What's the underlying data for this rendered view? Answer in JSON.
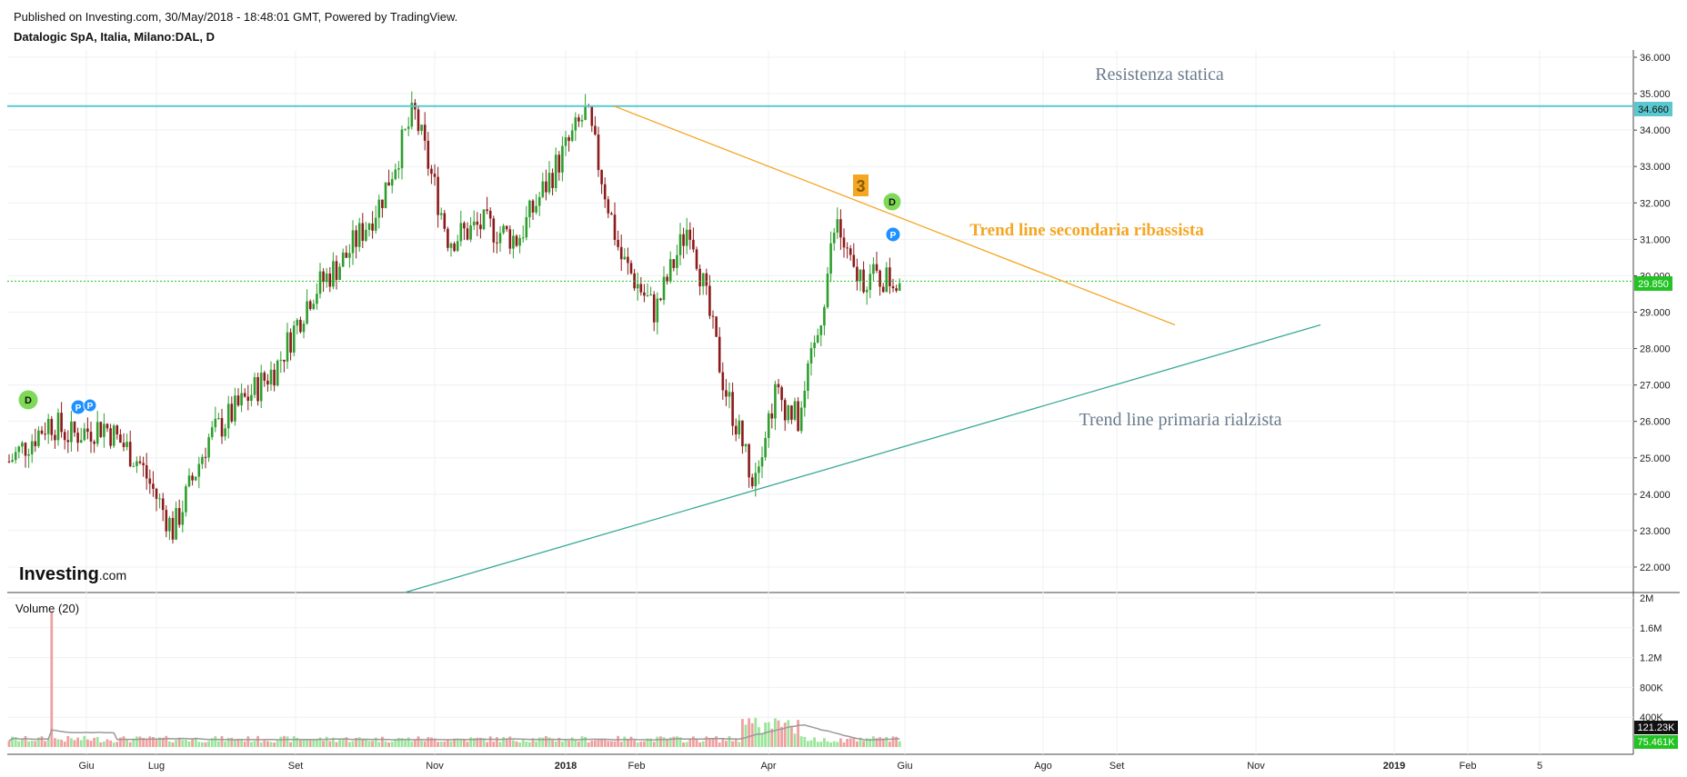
{
  "header": {
    "published": "Published on Investing.com, 30/May/2018 - 18:48:01 GMT, Powered by TradingView.",
    "symbol": "Datalogic SpA, Italia, Milano:DAL, D"
  },
  "logo": {
    "text": "Investing",
    "suffix": ".com"
  },
  "colors": {
    "up": "#2e9e2e",
    "down": "#8b1a1a",
    "resistance": "#5bc8d0",
    "secondary_trend": "#f5a623",
    "primary_trend": "#3aa89a",
    "last_price": "#22c322",
    "vol_up": "#9be59b",
    "vol_down": "#f0a0a0"
  },
  "annotations": {
    "resistance": "Resistenza statica",
    "secondary": "Trend line secondaria ribassista",
    "primary": "Trend line primaria rialzista",
    "wave_label": "3"
  },
  "markers": [
    {
      "label": "D",
      "kind": "dividend"
    },
    {
      "label": "P",
      "kind": "split"
    },
    {
      "label": "P",
      "kind": "split"
    },
    {
      "label": "D",
      "kind": "dividend"
    },
    {
      "label": "P",
      "kind": "split"
    }
  ],
  "price_labels": {
    "resistance": "34.660",
    "last": "29.850"
  },
  "volume_labels": {
    "title": "Volume (20)",
    "ma": "121.23K",
    "last": "75.461K"
  },
  "chart_data": {
    "type": "candlestick",
    "x_ticks": [
      "Giu",
      "Lug",
      "Set",
      "Nov",
      "2018",
      "Feb",
      "Apr",
      "Giu",
      "Ago",
      "Set",
      "Nov",
      "2019",
      "Feb",
      "5"
    ],
    "y_ticks": [
      "36.000",
      "35.000",
      "34.000",
      "33.000",
      "32.000",
      "31.000",
      "30.000",
      "29.000",
      "28.000",
      "27.000",
      "26.000",
      "25.000",
      "24.000",
      "23.000",
      "22.000"
    ],
    "y_range": [
      21.3,
      36.2
    ],
    "volume_ticks": [
      "2M",
      "1.6M",
      "1.2M",
      "800K",
      "400K"
    ],
    "volume_range": [
      0,
      2000000
    ],
    "resistance_level": 34.66,
    "last_price": 29.85,
    "secondary_trendline": {
      "from": [
        "Gen 2018",
        34.66
      ],
      "to": [
        "Ago 2018",
        28.65
      ]
    },
    "primary_trendline": {
      "from": [
        "Ago 2017",
        21.3
      ],
      "to": [
        "Dic 2018",
        28.65
      ]
    },
    "price_path": [
      {
        "date": "Mag 2017",
        "close": 24.9
      },
      {
        "date": "Mag 2017",
        "close": 26.0
      },
      {
        "date": "Giu 2017",
        "close": 25.6
      },
      {
        "date": "Giu 2017",
        "close": 25.9
      },
      {
        "date": "Lug 2017",
        "close": 24.9
      },
      {
        "date": "Lug 2017",
        "close": 23.0
      },
      {
        "date": "Ago 2017",
        "close": 25.5
      },
      {
        "date": "Ago 2017",
        "close": 26.5
      },
      {
        "date": "Set 2017",
        "close": 27.5
      },
      {
        "date": "Set 2017",
        "close": 29.5
      },
      {
        "date": "Ott 2017",
        "close": 30.5
      },
      {
        "date": "Ott 2017",
        "close": 32.0
      },
      {
        "date": "Nov 2017",
        "close": 34.5
      },
      {
        "date": "Nov 2017",
        "close": 31.0
      },
      {
        "date": "Dic 2017",
        "close": 31.4
      },
      {
        "date": "Dic 2017",
        "close": 31.0
      },
      {
        "date": "Gen 2018",
        "close": 32.8
      },
      {
        "date": "Gen 2018",
        "close": 34.5
      },
      {
        "date": "Feb 2018",
        "close": 30.5
      },
      {
        "date": "Feb 2018",
        "close": 29.0
      },
      {
        "date": "Mar 2018",
        "close": 31.5
      },
      {
        "date": "Mar 2018",
        "close": 27.0
      },
      {
        "date": "Apr 2018",
        "close": 24.5
      },
      {
        "date": "Apr 2018",
        "close": 26.8
      },
      {
        "date": "Apr 2018",
        "close": 26.0
      },
      {
        "date": "Mag 2018",
        "close": 28.5
      },
      {
        "date": "Mag 2018",
        "close": 31.5
      },
      {
        "date": "Mag 2018",
        "close": 30.0
      },
      {
        "date": "Mag 2018",
        "close": 29.85
      }
    ]
  }
}
